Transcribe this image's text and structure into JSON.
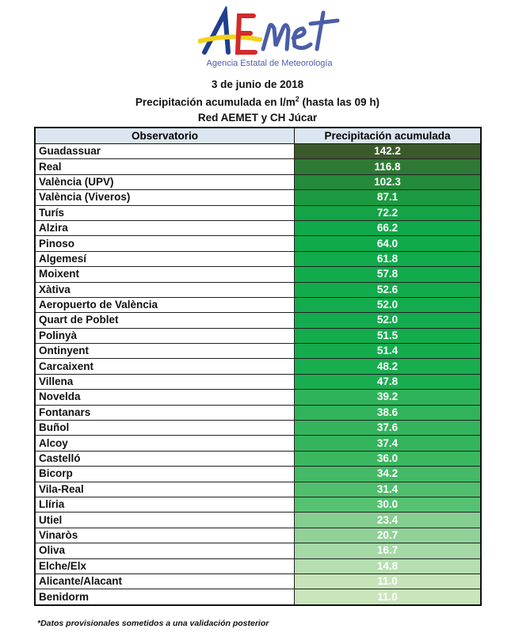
{
  "logo": {
    "wordmark": "AEMet",
    "agency": "Agencia Estatal de Meteorología"
  },
  "header": {
    "date": "3 de junio de 2018",
    "title": "Precipitación acumulada en l/m",
    "title_sup": "2",
    "title_suffix": " (hasta las 09 h)",
    "network": "Red AEMET y CH Júcar"
  },
  "table": {
    "columns": [
      "Observatorio",
      "Precipitación acumulada"
    ],
    "rows": [
      {
        "station": "Guadassuar",
        "value": "142.2",
        "color": "#3b5a2b"
      },
      {
        "station": "Real",
        "value": "116.8",
        "color": "#2e7a35"
      },
      {
        "station": "València (UPV)",
        "value": "102.3",
        "color": "#248a3c"
      },
      {
        "station": "València (Viveros)",
        "value": "87.1",
        "color": "#1c9a42"
      },
      {
        "station": "Turís",
        "value": "72.2",
        "color": "#14a347"
      },
      {
        "station": "Alzira",
        "value": "66.2",
        "color": "#10a84a"
      },
      {
        "station": "Pinoso",
        "value": "64.0",
        "color": "#10aa4b"
      },
      {
        "station": "Algemesí",
        "value": "61.8",
        "color": "#11ab4c"
      },
      {
        "station": "Moixent",
        "value": "57.8",
        "color": "#12ab4c"
      },
      {
        "station": "Xàtiva",
        "value": "52.6",
        "color": "#12ab4c"
      },
      {
        "station": "Aeropuerto de València",
        "value": "52.0",
        "color": "#13ab4d"
      },
      {
        "station": "Quart de Poblet",
        "value": "52.0",
        "color": "#13ab4d"
      },
      {
        "station": "Polinyà",
        "value": "51.5",
        "color": "#14ac4d"
      },
      {
        "station": "Ontinyent",
        "value": "51.4",
        "color": "#14ac4d"
      },
      {
        "station": "Carcaixent",
        "value": "48.2",
        "color": "#18ad4f"
      },
      {
        "station": "Villena",
        "value": "47.8",
        "color": "#1aad50"
      },
      {
        "station": "Novelda",
        "value": "39.2",
        "color": "#2fb35a"
      },
      {
        "station": "Fontanars",
        "value": "38.6",
        "color": "#31b35b"
      },
      {
        "station": "Buñol",
        "value": "37.6",
        "color": "#33b45c"
      },
      {
        "station": "Alcoy",
        "value": "37.4",
        "color": "#34b45d"
      },
      {
        "station": "Castelló",
        "value": "36.0",
        "color": "#3ab75f"
      },
      {
        "station": "Bicorp",
        "value": "34.2",
        "color": "#44ba66"
      },
      {
        "station": "Vila-Real",
        "value": "31.4",
        "color": "#4fbf6d"
      },
      {
        "station": "Llíria",
        "value": "30.0",
        "color": "#56c172"
      },
      {
        "station": "Utiel",
        "value": "23.4",
        "color": "#86cd90"
      },
      {
        "station": "Vinaròs",
        "value": "20.7",
        "color": "#91d198"
      },
      {
        "station": "Oliva",
        "value": "16.7",
        "color": "#a5d9a6"
      },
      {
        "station": "Elche/Elx",
        "value": "14.8",
        "color": "#b5dfb0"
      },
      {
        "station": "Alicante/Alacant",
        "value": "11.0",
        "color": "#c6e4b8"
      },
      {
        "station": "Benidorm",
        "value": "11.0",
        "color": "#c9e5ba"
      }
    ]
  },
  "footnote": "*Datos provisionales sometidos a una validación posterior"
}
